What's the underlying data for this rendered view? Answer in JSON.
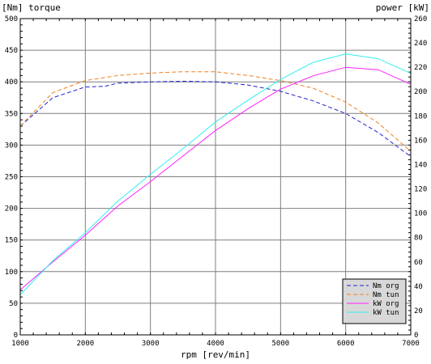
{
  "chart_data": {
    "type": "line",
    "title_left": "[Nm] torque",
    "title_right": "power [kW]",
    "xlabel": "rpm [rev/min]",
    "x_ticks": [
      1000,
      2000,
      3000,
      4000,
      5000,
      6000,
      7000
    ],
    "xlim": [
      1000,
      7000
    ],
    "y_left_ticks": [
      0,
      50,
      100,
      150,
      200,
      250,
      300,
      350,
      400,
      450,
      500
    ],
    "ylim_left": [
      0,
      500
    ],
    "y_right_ticks": [
      0,
      20,
      40,
      60,
      80,
      100,
      120,
      140,
      160,
      180,
      200,
      220,
      240,
      260
    ],
    "ylim_right": [
      0,
      260
    ],
    "grid": true,
    "legend_position": "bottom-right",
    "series": [
      {
        "name": "Nm org",
        "axis": "left",
        "style": "dashed",
        "color": "#2020d0",
        "points": [
          [
            1000,
            330
          ],
          [
            1500,
            375
          ],
          [
            2000,
            392
          ],
          [
            2300,
            393
          ],
          [
            2500,
            398
          ],
          [
            3000,
            400
          ],
          [
            3500,
            401
          ],
          [
            4000,
            400
          ],
          [
            4500,
            395
          ],
          [
            5000,
            385
          ],
          [
            5500,
            370
          ],
          [
            6000,
            350
          ],
          [
            6500,
            320
          ],
          [
            7000,
            282
          ]
        ]
      },
      {
        "name": "Nm tun",
        "axis": "left",
        "style": "dashed",
        "color": "#f08020",
        "points": [
          [
            1000,
            330
          ],
          [
            1500,
            383
          ],
          [
            2000,
            402
          ],
          [
            2500,
            410
          ],
          [
            3000,
            414
          ],
          [
            3500,
            416
          ],
          [
            4000,
            416
          ],
          [
            4500,
            410
          ],
          [
            5000,
            402
          ],
          [
            5500,
            390
          ],
          [
            6000,
            368
          ],
          [
            6500,
            335
          ],
          [
            7000,
            290
          ]
        ]
      },
      {
        "name": "kW org",
        "axis": "right",
        "style": "solid",
        "color": "#ff20ff",
        "points": [
          [
            1000,
            37
          ],
          [
            1500,
            60
          ],
          [
            2000,
            82
          ],
          [
            2500,
            106
          ],
          [
            3000,
            126
          ],
          [
            3500,
            147
          ],
          [
            4000,
            168
          ],
          [
            4500,
            186
          ],
          [
            5000,
            202
          ],
          [
            5500,
            213
          ],
          [
            6000,
            220
          ],
          [
            6500,
            218
          ],
          [
            7000,
            206
          ]
        ]
      },
      {
        "name": "kW tun",
        "axis": "right",
        "style": "solid",
        "color": "#30f0f0",
        "points": [
          [
            1000,
            33
          ],
          [
            1500,
            61
          ],
          [
            2000,
            84
          ],
          [
            2500,
            110
          ],
          [
            3000,
            132
          ],
          [
            3500,
            153
          ],
          [
            4000,
            175
          ],
          [
            4500,
            193
          ],
          [
            5000,
            210
          ],
          [
            5500,
            224
          ],
          [
            6000,
            231
          ],
          [
            6500,
            227
          ],
          [
            7000,
            215
          ]
        ]
      }
    ]
  }
}
